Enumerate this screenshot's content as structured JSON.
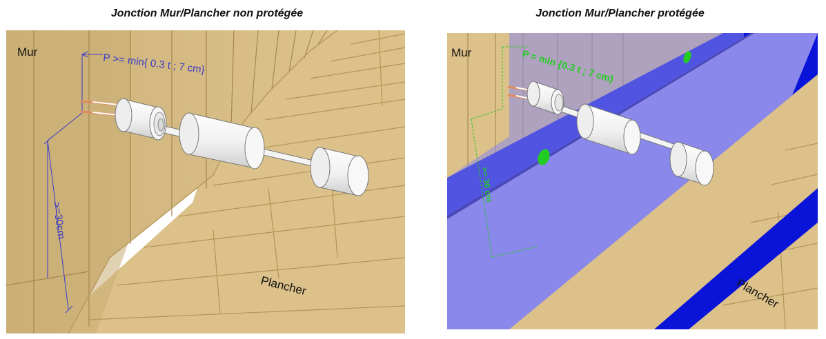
{
  "captions": {
    "left": "Jonction Mur/Plancher non protégée",
    "right": "Jonction Mur/Plancher protégée"
  },
  "left_panel": {
    "wall_label": "Mur",
    "floor_label": "Plancher",
    "depth_annotation": "P >= min{ 0.3 t ; 7 cm}",
    "height_annotation": ">=30cm"
  },
  "right_panel": {
    "wall_label": "Mur",
    "floor_label": "Plancher",
    "depth_annotation": "P = min {0.3 t ; 7 cm}",
    "height_annotation": ">= 30 cm"
  },
  "colors": {
    "wood_light": "#e2c98e",
    "wood_mid": "#d4b577",
    "wood_grain": "#a78a52",
    "annotation_blue": "#3a3ac8",
    "annotation_green": "#22cc22",
    "protection_blue": "#0a14d8",
    "protection_lavender": "#8a88ea",
    "cylinder": "#f2f2f2"
  }
}
